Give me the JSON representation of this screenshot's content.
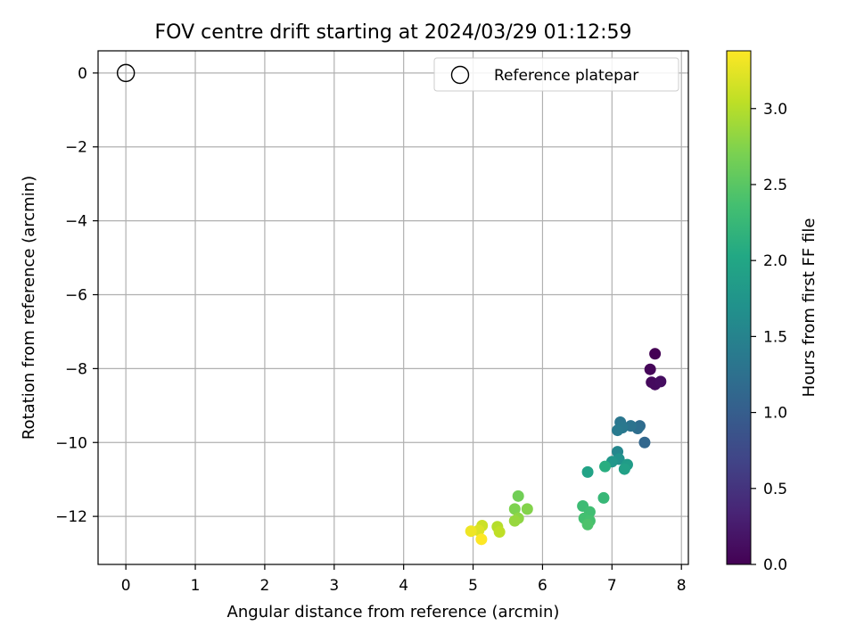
{
  "chart_data": {
    "type": "scatter",
    "title": "FOV centre drift starting at 2024/03/29 01:12:59",
    "xlabel": "Angular distance from reference (arcmin)",
    "ylabel": "Rotation from reference (arcmin)",
    "xlim": [
      -0.4,
      8.1
    ],
    "ylim": [
      -13.3,
      0.6
    ],
    "xticks": [
      0,
      1,
      2,
      3,
      4,
      5,
      6,
      7,
      8
    ],
    "xtick_labels": [
      "0",
      "1",
      "2",
      "3",
      "4",
      "5",
      "6",
      "7",
      "8"
    ],
    "yticks": [
      0,
      -2,
      -4,
      -6,
      -8,
      -10,
      -12
    ],
    "ytick_labels": [
      "0",
      "−2",
      "−4",
      "−6",
      "−8",
      "−10",
      "−12"
    ],
    "grid": true,
    "legend": {
      "position": "top-right",
      "entries": [
        "Reference platepar"
      ]
    },
    "reference_point": {
      "x": 0,
      "y": 0,
      "label": "Reference platepar"
    },
    "colorbar": {
      "label": "Hours from first FF file",
      "colormap": "viridis",
      "range": [
        0.0,
        3.38
      ],
      "ticks": [
        0.0,
        0.5,
        1.0,
        1.5,
        2.0,
        2.5,
        3.0
      ],
      "tick_labels": [
        "0.0",
        "0.5",
        "1.0",
        "1.5",
        "2.0",
        "2.5",
        "3.0"
      ]
    },
    "points": [
      {
        "x": 7.62,
        "y": -7.6,
        "t": 0.0
      },
      {
        "x": 7.55,
        "y": -8.02,
        "t": 0.05
      },
      {
        "x": 7.57,
        "y": -8.37,
        "t": 0.08
      },
      {
        "x": 7.62,
        "y": -8.43,
        "t": 0.1
      },
      {
        "x": 7.7,
        "y": -8.35,
        "t": 0.12
      },
      {
        "x": 7.47,
        "y": -10.0,
        "t": 1.12
      },
      {
        "x": 7.4,
        "y": -9.55,
        "t": 1.18
      },
      {
        "x": 7.37,
        "y": -9.62,
        "t": 1.22
      },
      {
        "x": 7.27,
        "y": -9.55,
        "t": 1.28
      },
      {
        "x": 7.12,
        "y": -9.45,
        "t": 1.32
      },
      {
        "x": 7.15,
        "y": -9.6,
        "t": 1.35
      },
      {
        "x": 7.08,
        "y": -9.67,
        "t": 1.38
      },
      {
        "x": 7.08,
        "y": -10.25,
        "t": 1.55
      },
      {
        "x": 7.1,
        "y": -10.45,
        "t": 1.7
      },
      {
        "x": 7.0,
        "y": -10.52,
        "t": 1.78
      },
      {
        "x": 7.22,
        "y": -10.6,
        "t": 1.85
      },
      {
        "x": 7.18,
        "y": -10.72,
        "t": 1.92
      },
      {
        "x": 6.65,
        "y": -10.8,
        "t": 1.95
      },
      {
        "x": 6.9,
        "y": -10.65,
        "t": 2.1
      },
      {
        "x": 6.88,
        "y": -11.5,
        "t": 2.25
      },
      {
        "x": 6.58,
        "y": -11.72,
        "t": 2.3
      },
      {
        "x": 6.68,
        "y": -11.88,
        "t": 2.34
      },
      {
        "x": 6.6,
        "y": -12.05,
        "t": 2.36
      },
      {
        "x": 6.68,
        "y": -12.12,
        "t": 2.38
      },
      {
        "x": 6.65,
        "y": -12.22,
        "t": 2.42
      },
      {
        "x": 5.65,
        "y": -11.45,
        "t": 2.65
      },
      {
        "x": 5.6,
        "y": -11.8,
        "t": 2.72
      },
      {
        "x": 5.78,
        "y": -11.8,
        "t": 2.75
      },
      {
        "x": 5.65,
        "y": -12.05,
        "t": 2.8
      },
      {
        "x": 5.6,
        "y": -12.12,
        "t": 2.85
      },
      {
        "x": 5.35,
        "y": -12.28,
        "t": 3.0
      },
      {
        "x": 5.38,
        "y": -12.42,
        "t": 3.05
      },
      {
        "x": 5.13,
        "y": -12.25,
        "t": 3.12
      },
      {
        "x": 5.08,
        "y": -12.38,
        "t": 3.2
      },
      {
        "x": 4.97,
        "y": -12.4,
        "t": 3.3
      },
      {
        "x": 5.12,
        "y": -12.62,
        "t": 3.38
      }
    ]
  }
}
